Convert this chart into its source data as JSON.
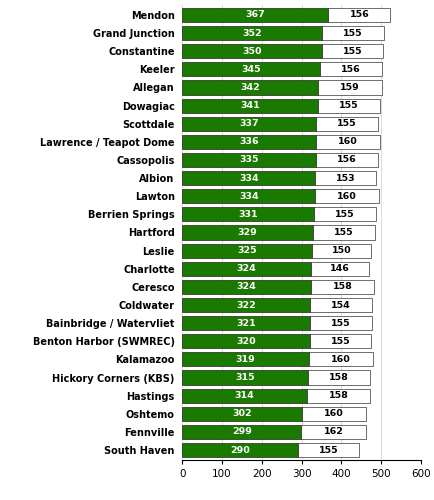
{
  "locations": [
    "Mendon",
    "Grand Junction",
    "Constantine",
    "Keeler",
    "Allegan",
    "Dowagiac",
    "Scottdale",
    "Lawrence / Teapot Dome",
    "Cassopolis",
    "Albion",
    "Lawton",
    "Berrien Springs",
    "Hartford",
    "Leslie",
    "Charlotte",
    "Ceresco",
    "Coldwater",
    "Bainbridge / Watervliet",
    "Benton Harbor (SWMREC)",
    "Kalamazoo",
    "Hickory Corners (KBS)",
    "Hastings",
    "Oshtemo",
    "Fennville",
    "South Haven"
  ],
  "current_gdd": [
    367,
    352,
    350,
    345,
    342,
    341,
    337,
    336,
    335,
    334,
    334,
    331,
    329,
    325,
    324,
    324,
    322,
    321,
    320,
    319,
    315,
    314,
    302,
    299,
    290
  ],
  "forecast_gdd": [
    156,
    155,
    155,
    156,
    159,
    155,
    155,
    160,
    156,
    153,
    160,
    155,
    155,
    150,
    146,
    158,
    154,
    155,
    155,
    160,
    158,
    158,
    160,
    162,
    155
  ],
  "current_color": "#1a7a00",
  "forecast_color": "#ffffff",
  "current_text_color": "#ffffff",
  "forecast_text_color": "#000000",
  "bar_edge_color": "#000000",
  "background_color": "#ffffff",
  "xlim": [
    0,
    600
  ],
  "xticks": [
    0,
    100,
    200,
    300,
    400,
    500,
    600
  ],
  "bar_height": 0.78,
  "figsize": [
    4.34,
    5.0
  ],
  "dpi": 100,
  "label_fontsize": 7.0,
  "value_fontsize": 6.8,
  "tick_fontsize": 7.5
}
